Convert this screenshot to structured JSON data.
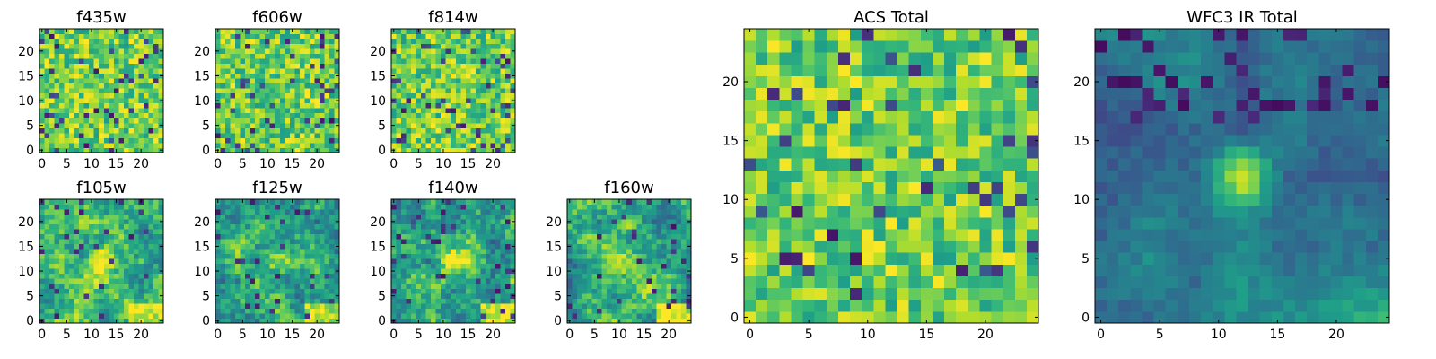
{
  "chart_data": [
    {
      "type": "heatmap",
      "title": "f435w",
      "xlim": [
        0,
        24
      ],
      "ylim": [
        0,
        24
      ],
      "xticks": [
        "0",
        "5",
        "10",
        "15",
        "20"
      ],
      "yticks": [
        "0",
        "5",
        "10",
        "15",
        "20"
      ],
      "pattern": "noise",
      "seed": 11
    },
    {
      "type": "heatmap",
      "title": "f606w",
      "xlim": [
        0,
        24
      ],
      "ylim": [
        0,
        24
      ],
      "xticks": [
        "0",
        "5",
        "10",
        "15",
        "20"
      ],
      "yticks": [
        "0",
        "5",
        "10",
        "15",
        "20"
      ],
      "pattern": "noise",
      "seed": 23
    },
    {
      "type": "heatmap",
      "title": "f814w",
      "xlim": [
        0,
        24
      ],
      "ylim": [
        0,
        24
      ],
      "xticks": [
        "0",
        "5",
        "10",
        "15",
        "20"
      ],
      "yticks": [
        "0",
        "5",
        "10",
        "15",
        "20"
      ],
      "pattern": "noise",
      "seed": 37
    },
    {
      "type": "heatmap",
      "title": "f105w",
      "xlim": [
        0,
        24
      ],
      "ylim": [
        0,
        24
      ],
      "xticks": [
        "0",
        "5",
        "10",
        "15",
        "20"
      ],
      "yticks": [
        "0",
        "5",
        "10",
        "15",
        "20"
      ],
      "pattern": "source",
      "seed": 41
    },
    {
      "type": "heatmap",
      "title": "f125w",
      "xlim": [
        0,
        24
      ],
      "ylim": [
        0,
        24
      ],
      "xticks": [
        "0",
        "5",
        "10",
        "15",
        "20"
      ],
      "yticks": [
        "0",
        "5",
        "10",
        "15",
        "20"
      ],
      "pattern": "source",
      "seed": 53
    },
    {
      "type": "heatmap",
      "title": "f140w",
      "xlim": [
        0,
        24
      ],
      "ylim": [
        0,
        24
      ],
      "xticks": [
        "0",
        "5",
        "10",
        "15",
        "20"
      ],
      "yticks": [
        "0",
        "5",
        "10",
        "15",
        "20"
      ],
      "pattern": "source",
      "seed": 67
    },
    {
      "type": "heatmap",
      "title": "f160w",
      "xlim": [
        0,
        24
      ],
      "ylim": [
        0,
        24
      ],
      "xticks": [
        "0",
        "5",
        "10",
        "15",
        "20"
      ],
      "yticks": [
        "0",
        "5",
        "10",
        "15",
        "20"
      ],
      "pattern": "source",
      "seed": 79
    },
    {
      "type": "heatmap",
      "title": "ACS Total",
      "xlim": [
        0,
        24
      ],
      "ylim": [
        0,
        24
      ],
      "xticks": [
        "0",
        "5",
        "10",
        "15",
        "20"
      ],
      "yticks": [
        "0",
        "5",
        "10",
        "15",
        "20"
      ],
      "pattern": "noise",
      "seed": 83
    },
    {
      "type": "heatmap",
      "title": "WFC3 IR Total",
      "xlim": [
        0,
        24
      ],
      "ylim": [
        0,
        24
      ],
      "xticks": [
        "0",
        "5",
        "10",
        "15",
        "20"
      ],
      "yticks": [
        "0",
        "5",
        "10",
        "15",
        "20"
      ],
      "pattern": "smooth",
      "seed": 97
    }
  ],
  "colors": {
    "colormap": "viridis",
    "axes_frame": "#000000"
  }
}
